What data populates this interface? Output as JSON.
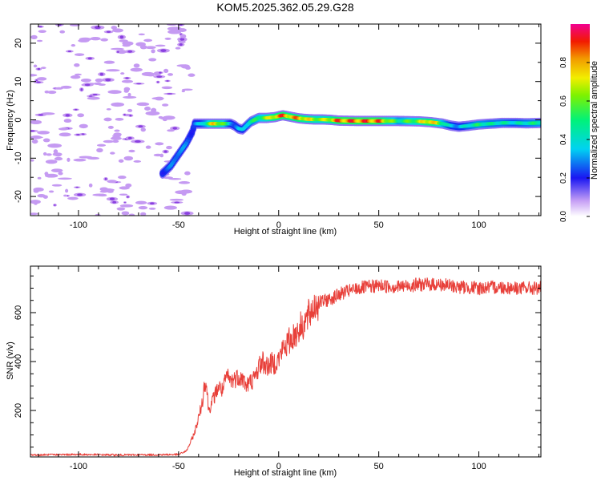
{
  "colors": {
    "background": "#ffffff",
    "axis": "#000000",
    "snr_line": "#e8403a",
    "noise": "#c59af2",
    "noise_core": "#8a40e0"
  },
  "chart_data": [
    {
      "type": "heatmap",
      "title": "KOM5.2025.362.05.29.G28",
      "xlabel": "Height of straight line (km)",
      "ylabel": "Frequency (Hz)",
      "xlim": [
        -124,
        131
      ],
      "ylim": [
        -25,
        25
      ],
      "xticks": [
        -100,
        -50,
        0,
        50,
        100
      ],
      "yticks": [
        -20,
        -10,
        0,
        10,
        20
      ],
      "colorbar": {
        "label": "Normalized spectral amplitude",
        "range": [
          0,
          1
        ],
        "ticks": [
          0.0,
          0.2,
          0.4,
          0.6,
          0.8
        ]
      },
      "track": {
        "x": [
          -58,
          -54,
          -50,
          -46,
          -43,
          -42,
          -40,
          -36,
          -32,
          -28,
          -24,
          -22,
          -20,
          -18,
          -16,
          -14,
          -12,
          -10,
          -6,
          -2,
          2,
          6,
          10,
          14,
          18,
          22,
          26,
          30,
          40,
          50,
          60,
          70,
          76,
          82,
          86,
          90,
          94,
          100,
          106,
          112,
          118,
          124,
          131
        ],
        "y": [
          -14,
          -12,
          -9,
          -6,
          -3,
          -1,
          -1,
          -1,
          -1,
          -1,
          -1,
          -1.5,
          -2.3,
          -2.5,
          -1.5,
          -0.5,
          0,
          0.5,
          0.5,
          0.7,
          1.2,
          0.8,
          0.4,
          0.2,
          0.1,
          0.1,
          0,
          -0.2,
          -0.3,
          -0.3,
          -0.3,
          -0.4,
          -0.6,
          -1,
          -1.5,
          -1.8,
          -1.6,
          -1.2,
          -1,
          -0.8,
          -0.8,
          -0.9,
          -0.8
        ],
        "amplitude": [
          0.25,
          0.3,
          0.35,
          0.3,
          0.25,
          0.3,
          0.35,
          0.55,
          0.85,
          0.7,
          0.4,
          0.3,
          0.35,
          0.4,
          0.45,
          0.5,
          0.55,
          0.6,
          0.7,
          0.85,
          0.95,
          0.85,
          0.9,
          0.8,
          0.75,
          0.7,
          0.8,
          0.95,
          0.95,
          0.95,
          0.55,
          0.7,
          0.9,
          0.6,
          0.4,
          0.35,
          0.45,
          0.55,
          0.5,
          0.5,
          0.45,
          0.5,
          0.55
        ]
      }
    },
    {
      "type": "line",
      "xlabel": "Height of straight line (km)",
      "ylabel": "SNR (v/v)",
      "xlim": [
        -124,
        131
      ],
      "ylim": [
        10,
        790
      ],
      "xticks": [
        -100,
        -50,
        0,
        50,
        100
      ],
      "yticks": [
        200,
        400,
        600
      ],
      "series": [
        {
          "name": "SNR",
          "x": [
            -124,
            -100,
            -80,
            -60,
            -50,
            -46,
            -44,
            -42,
            -40,
            -38,
            -37,
            -36,
            -35,
            -34,
            -32,
            -30,
            -28,
            -26,
            -24,
            -22,
            -20,
            -18,
            -16,
            -14,
            -12,
            -10,
            -8,
            -6,
            -4,
            -2,
            0,
            2,
            4,
            6,
            8,
            10,
            12,
            14,
            16,
            18,
            20,
            24,
            28,
            32,
            36,
            40,
            50,
            60,
            70,
            80,
            90,
            100,
            110,
            120,
            131
          ],
          "y": [
            18,
            20,
            18,
            19,
            20,
            35,
            70,
            110,
            170,
            240,
            320,
            300,
            200,
            220,
            260,
            300,
            280,
            340,
            320,
            330,
            340,
            330,
            300,
            320,
            330,
            380,
            400,
            380,
            390,
            395,
            410,
            450,
            470,
            490,
            510,
            530,
            550,
            570,
            600,
            630,
            640,
            650,
            665,
            680,
            690,
            700,
            710,
            705,
            715,
            715,
            705,
            700,
            705,
            700,
            700
          ]
        }
      ]
    }
  ]
}
